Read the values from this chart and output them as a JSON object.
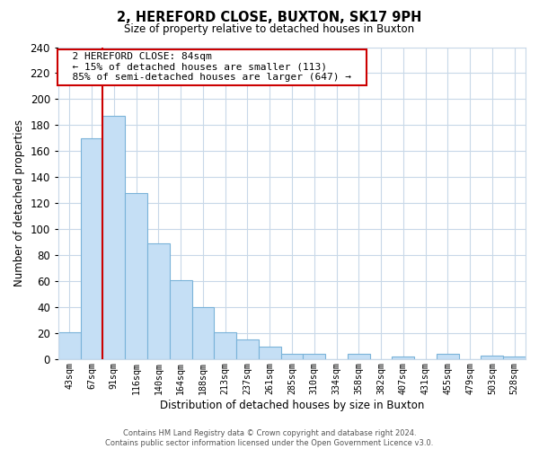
{
  "title": "2, HEREFORD CLOSE, BUXTON, SK17 9PH",
  "subtitle": "Size of property relative to detached houses in Buxton",
  "xlabel": "Distribution of detached houses by size in Buxton",
  "ylabel": "Number of detached properties",
  "bar_labels": [
    "43sqm",
    "67sqm",
    "91sqm",
    "116sqm",
    "140sqm",
    "164sqm",
    "188sqm",
    "213sqm",
    "237sqm",
    "261sqm",
    "285sqm",
    "310sqm",
    "334sqm",
    "358sqm",
    "382sqm",
    "407sqm",
    "431sqm",
    "455sqm",
    "479sqm",
    "503sqm",
    "528sqm"
  ],
  "bar_heights": [
    21,
    170,
    187,
    128,
    89,
    61,
    40,
    21,
    15,
    10,
    4,
    4,
    0,
    4,
    0,
    2,
    0,
    4,
    0,
    3,
    2
  ],
  "bar_color": "#c5dff5",
  "bar_edge_color": "#7ab3d9",
  "vline_color": "#cc0000",
  "ylim": [
    0,
    240
  ],
  "yticks": [
    0,
    20,
    40,
    60,
    80,
    100,
    120,
    140,
    160,
    180,
    200,
    220,
    240
  ],
  "annotation_title": "2 HEREFORD CLOSE: 84sqm",
  "annotation_line1": "← 15% of detached houses are smaller (113)",
  "annotation_line2": "85% of semi-detached houses are larger (647) →",
  "annotation_box_color": "#ffffff",
  "annotation_box_edge": "#cc0000",
  "footer_line1": "Contains HM Land Registry data © Crown copyright and database right 2024.",
  "footer_line2": "Contains public sector information licensed under the Open Government Licence v3.0.",
  "background_color": "#ffffff",
  "grid_color": "#c8d8e8"
}
